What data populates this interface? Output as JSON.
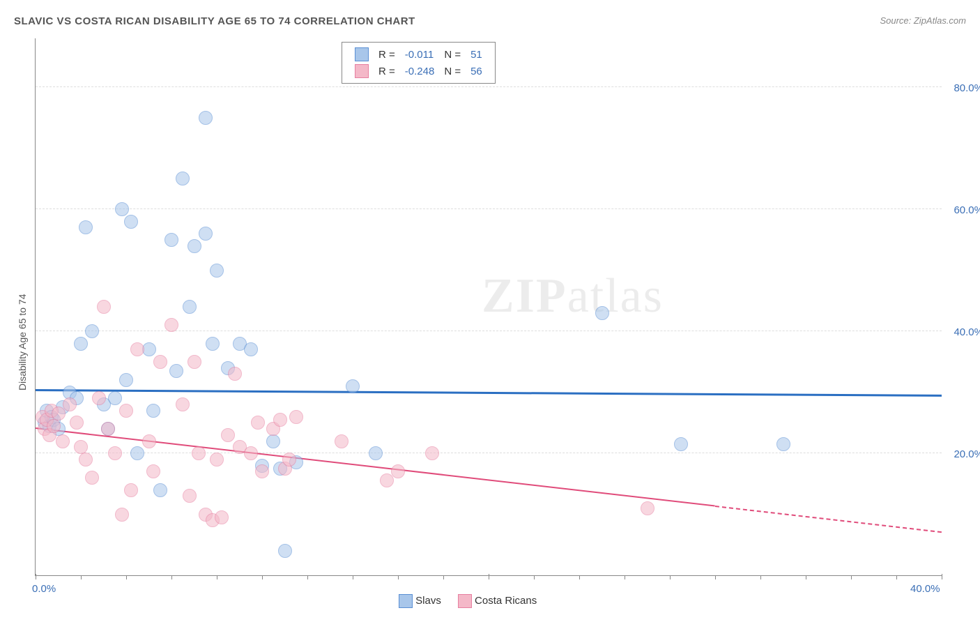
{
  "title": "SLAVIC VS COSTA RICAN DISABILITY AGE 65 TO 74 CORRELATION CHART",
  "source_label": "Source: ",
  "source_name": "ZipAtlas.com",
  "ylabel": "Disability Age 65 to 74",
  "watermark_a": "ZIP",
  "watermark_b": "atlas",
  "chart": {
    "type": "scatter",
    "xlim": [
      0,
      40
    ],
    "ylim": [
      0,
      88
    ],
    "x_ticks": [
      0,
      20,
      40
    ],
    "x_tick_labels": [
      "0.0%",
      "",
      "40.0%"
    ],
    "x_minor_ticks": [
      2,
      4,
      6,
      8,
      10,
      12,
      14,
      16,
      18,
      22,
      24,
      26,
      28,
      30,
      32,
      34,
      36,
      38
    ],
    "y_gridlines": [
      20,
      40,
      60,
      80
    ],
    "y_tick_labels": [
      "20.0%",
      "40.0%",
      "60.0%",
      "80.0%"
    ],
    "grid_color": "#dddddd",
    "axis_color": "#888888",
    "background_color": "#ffffff",
    "marker_radius": 9,
    "marker_border": 1.2,
    "marker_opacity": 0.55,
    "label_fontsize": 15,
    "label_color": "#3b6fb6",
    "series": [
      {
        "name": "Slavs",
        "color_fill": "#a8c6ea",
        "color_stroke": "#5a8fd4",
        "R": "-0.011",
        "N": "51",
        "trend": {
          "x1": 0,
          "y1": 30.2,
          "x2": 40,
          "y2": 29.3,
          "color": "#2b6fc2",
          "width": 3,
          "dash_from_x": 40
        },
        "points": [
          [
            0.4,
            25
          ],
          [
            0.5,
            27
          ],
          [
            0.6,
            24.5
          ],
          [
            0.7,
            26
          ],
          [
            0.8,
            25.5
          ],
          [
            1.0,
            24
          ],
          [
            1.2,
            27.5
          ],
          [
            1.5,
            30
          ],
          [
            1.8,
            29
          ],
          [
            2.0,
            38
          ],
          [
            2.2,
            57
          ],
          [
            2.5,
            40
          ],
          [
            3.0,
            28
          ],
          [
            3.2,
            24
          ],
          [
            3.5,
            29
          ],
          [
            3.8,
            60
          ],
          [
            4.0,
            32
          ],
          [
            4.2,
            58
          ],
          [
            4.5,
            20
          ],
          [
            5.0,
            37
          ],
          [
            5.2,
            27
          ],
          [
            5.5,
            14
          ],
          [
            6.0,
            55
          ],
          [
            6.2,
            33.5
          ],
          [
            6.5,
            65
          ],
          [
            6.8,
            44
          ],
          [
            7.0,
            54
          ],
          [
            7.5,
            75
          ],
          [
            7.5,
            56
          ],
          [
            7.8,
            38
          ],
          [
            8.0,
            50
          ],
          [
            8.5,
            34
          ],
          [
            9.0,
            38
          ],
          [
            9.5,
            37
          ],
          [
            10.0,
            18
          ],
          [
            10.5,
            22
          ],
          [
            10.8,
            17.5
          ],
          [
            11.0,
            4
          ],
          [
            11.5,
            18.5
          ],
          [
            14.0,
            31
          ],
          [
            15.0,
            20
          ],
          [
            25.0,
            43
          ],
          [
            28.5,
            21.5
          ],
          [
            33.0,
            21.5
          ]
        ]
      },
      {
        "name": "Costa Ricans",
        "color_fill": "#f4b8c8",
        "color_stroke": "#e77fa0",
        "R": "-0.248",
        "N": "56",
        "trend": {
          "x1": 0,
          "y1": 24.0,
          "x2": 40,
          "y2": 7.0,
          "color": "#e04b7a",
          "width": 2.5,
          "dash_from_x": 30
        },
        "points": [
          [
            0.3,
            26
          ],
          [
            0.4,
            24
          ],
          [
            0.5,
            25.5
          ],
          [
            0.6,
            23
          ],
          [
            0.7,
            27
          ],
          [
            0.8,
            24.5
          ],
          [
            1.0,
            26.5
          ],
          [
            1.2,
            22
          ],
          [
            1.5,
            28
          ],
          [
            1.8,
            25
          ],
          [
            2.0,
            21
          ],
          [
            2.2,
            19
          ],
          [
            2.5,
            16
          ],
          [
            2.8,
            29
          ],
          [
            3.0,
            44
          ],
          [
            3.2,
            24
          ],
          [
            3.5,
            20
          ],
          [
            3.8,
            10
          ],
          [
            4.0,
            27
          ],
          [
            4.2,
            14
          ],
          [
            4.5,
            37
          ],
          [
            5.0,
            22
          ],
          [
            5.2,
            17
          ],
          [
            5.5,
            35
          ],
          [
            6.0,
            41
          ],
          [
            6.5,
            28
          ],
          [
            6.8,
            13
          ],
          [
            7.0,
            35
          ],
          [
            7.2,
            20
          ],
          [
            7.5,
            10
          ],
          [
            7.8,
            9
          ],
          [
            8.0,
            19
          ],
          [
            8.2,
            9.5
          ],
          [
            8.5,
            23
          ],
          [
            8.8,
            33
          ],
          [
            9.0,
            21
          ],
          [
            9.5,
            20
          ],
          [
            9.8,
            25
          ],
          [
            10.0,
            17
          ],
          [
            10.5,
            24
          ],
          [
            10.8,
            25.5
          ],
          [
            11.0,
            17.5
          ],
          [
            11.2,
            19
          ],
          [
            11.5,
            26
          ],
          [
            13.5,
            22
          ],
          [
            15.5,
            15.5
          ],
          [
            16.0,
            17
          ],
          [
            17.5,
            20
          ],
          [
            27.0,
            11
          ]
        ]
      }
    ]
  },
  "legend_top": {
    "R_label": "R =",
    "N_label": "N ="
  },
  "legend_bottom": {
    "items": [
      "Slavs",
      "Costa Ricans"
    ]
  }
}
